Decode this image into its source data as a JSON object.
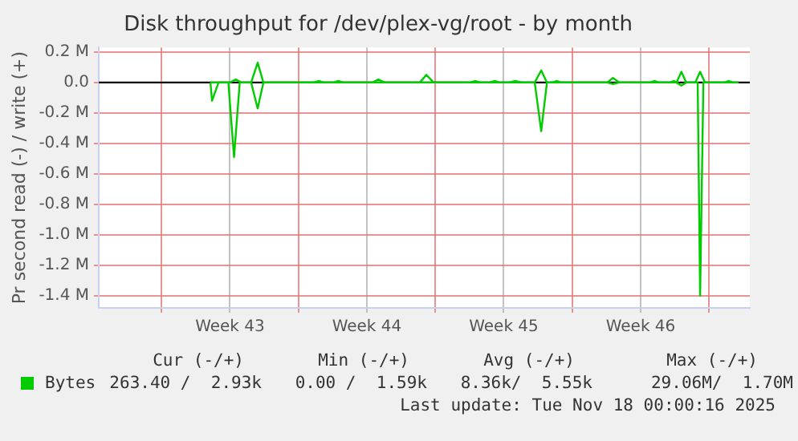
{
  "chart_data": {
    "type": "line",
    "title": "Disk throughput for /dev/plex-vg/root - by month",
    "ylabel": "Pr second read (-) / write (+)",
    "xlim": [
      "2025-10-16T19:00",
      "2025-11-19T02:00"
    ],
    "xticks": [
      {
        "value": "2025-10-20",
        "label": null
      },
      {
        "value": "2025-10-23T12:00",
        "label": "Week 43"
      },
      {
        "value": "2025-10-27",
        "label": null
      },
      {
        "value": "2025-10-30T12:00",
        "label": "Week 44"
      },
      {
        "value": "2025-11-03",
        "label": null
      },
      {
        "value": "2025-11-06T12:00",
        "label": "Week 45"
      },
      {
        "value": "2025-11-10",
        "label": null
      },
      {
        "value": "2025-11-13T12:00",
        "label": "Week 46"
      },
      {
        "value": "2025-11-17",
        "label": null
      }
    ],
    "ylim": [
      -1480000,
      230000
    ],
    "yticks": [
      {
        "value": 200000,
        "label": "0.2 M"
      },
      {
        "value": 0,
        "label": "0.0"
      },
      {
        "value": -200000,
        "label": "-0.2 M"
      },
      {
        "value": -400000,
        "label": "-0.4 M"
      },
      {
        "value": -600000,
        "label": "-0.6 M"
      },
      {
        "value": -800000,
        "label": "-0.8 M"
      },
      {
        "value": -1000000,
        "label": "-1.0 M"
      },
      {
        "value": -1200000,
        "label": "-1.2 M"
      },
      {
        "value": -1400000,
        "label": "-1.4 M"
      }
    ],
    "grid": true,
    "legend": "bottom left",
    "marker": "none",
    "line_style": "solid",
    "ref_lines": [
      {
        "axis": "y",
        "value": 0,
        "color": "#000000"
      }
    ],
    "series": [
      {
        "name": "Bytes",
        "color": "#00cc00",
        "x": [
          "2025-10-22T12:00",
          "2025-10-23T12:00",
          "2025-10-23T19:00",
          "2025-10-24T02:00",
          "2025-10-24T14:00",
          "2025-10-24T22:00",
          "2025-10-25T05:00",
          "2025-10-27T19:00",
          "2025-10-28T01:00",
          "2025-10-28T07:00",
          "2025-10-28T19:00",
          "2025-10-29T01:00",
          "2025-10-29T07:00",
          "2025-10-30T19:00",
          "2025-10-31T02:00",
          "2025-10-31T10:00",
          "2025-11-02T05:00",
          "2025-11-02T13:00",
          "2025-11-02T22:00",
          "2025-11-04T19:00",
          "2025-11-05T01:00",
          "2025-11-05T07:00",
          "2025-11-05T19:00",
          "2025-11-06T01:00",
          "2025-11-06T07:00",
          "2025-11-06T19:00",
          "2025-11-07T02:00",
          "2025-11-07T10:00",
          "2025-11-08T02:00",
          "2025-11-08T10:00",
          "2025-11-08T17:00",
          "2025-11-09T00:00",
          "2025-11-09T05:00",
          "2025-11-09T10:00",
          "2025-11-11T19:00",
          "2025-11-12T02:00",
          "2025-11-12T10:00",
          "2025-11-14T00:00",
          "2025-11-14T05:00",
          "2025-11-14T10:00",
          "2025-11-15T00:00",
          "2025-11-15T05:00",
          "2025-11-15T08:00",
          "2025-11-15T14:00",
          "2025-11-15T20:00",
          "2025-11-16T07:00",
          "2025-11-16T13:00",
          "2025-11-16T19:00",
          "2025-11-17T19:00",
          "2025-11-18T00:00",
          "2025-11-18T05:00",
          "2025-11-18T12:00"
        ],
        "values": [
          0,
          0,
          20000,
          0,
          0,
          130000,
          0,
          0,
          10000,
          0,
          0,
          10000,
          0,
          0,
          20000,
          0,
          0,
          50000,
          0,
          0,
          10000,
          0,
          0,
          10000,
          0,
          0,
          10000,
          0,
          0,
          80000,
          0,
          0,
          10000,
          0,
          0,
          30000,
          0,
          0,
          10000,
          0,
          0,
          10000,
          0,
          70000,
          0,
          0,
          70000,
          0,
          0,
          10000,
          0,
          0
        ]
      },
      {
        "color": "#00cc00",
        "x": [
          "2025-10-22T12:00",
          "2025-10-22T14:00",
          "2025-10-22T22:00",
          "2025-10-23T10:00",
          "2025-10-23T17:00",
          "2025-10-24T00:00",
          "2025-10-24T14:00",
          "2025-10-24T22:00",
          "2025-10-25T05:00",
          "2025-11-08T02:00",
          "2025-11-08T10:00",
          "2025-11-08T17:00",
          "2025-11-11T19:00",
          "2025-11-12T02:00",
          "2025-11-12T10:00",
          "2025-11-15T08:00",
          "2025-11-15T14:00",
          "2025-11-15T20:00",
          "2025-11-16T10:00",
          "2025-11-16T13:00",
          "2025-11-16T17:00",
          "2025-11-18T12:00"
        ],
        "values": [
          0,
          -120000,
          0,
          0,
          -490000,
          0,
          0,
          -170000,
          0,
          0,
          -320000,
          0,
          0,
          -10000,
          0,
          0,
          -20000,
          0,
          0,
          -1400000,
          0,
          0
        ]
      }
    ],
    "annotations": [
      "Cur (-/+)",
      "Min (-/+)",
      "Avg (-/+)",
      "Max (-/+)",
      "263.40 /  2.93k",
      "0.00 /  1.59k",
      "8.36k/  5.55k",
      "29.06M/  1.70M",
      "Last update: Tue Nov 18 00:00:16 2025"
    ]
  }
}
